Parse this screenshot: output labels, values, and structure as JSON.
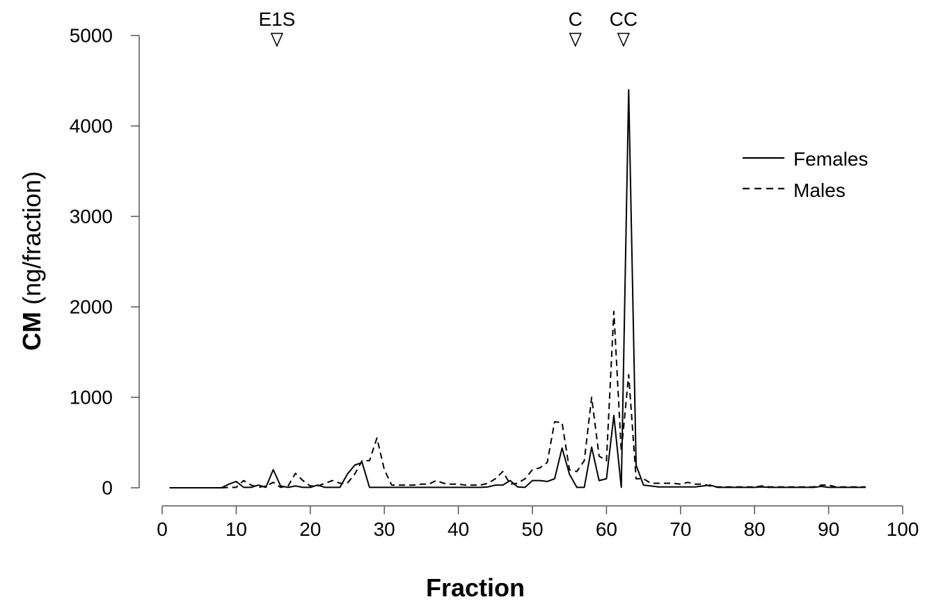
{
  "chart_data": {
    "type": "line",
    "title": "",
    "xlabel": "Fraction",
    "ylabel_bold": "CM",
    "ylabel_rest": " (ng/fraction)",
    "xlim": [
      0,
      100
    ],
    "ylim": [
      0,
      5000
    ],
    "x_ticks": [
      0,
      10,
      20,
      30,
      40,
      50,
      60,
      70,
      80,
      90,
      100
    ],
    "y_ticks": [
      0,
      1000,
      2000,
      3000,
      4000,
      5000
    ],
    "grid": false,
    "legend_position": "top-right",
    "colors": {
      "line": "#000000",
      "background": "#ffffff"
    },
    "markers": [
      {
        "label": "E1S",
        "x": 15.5
      },
      {
        "label": "C",
        "x": 55.8
      },
      {
        "label": "CC",
        "x": 62.3
      }
    ],
    "series": [
      {
        "name": "Females",
        "style": "solid",
        "x": [
          1,
          2,
          3,
          4,
          5,
          6,
          7,
          8,
          9,
          10,
          11,
          12,
          13,
          14,
          15,
          16,
          17,
          18,
          19,
          20,
          21,
          22,
          23,
          24,
          25,
          26,
          27,
          28,
          29,
          30,
          31,
          32,
          33,
          34,
          35,
          36,
          37,
          38,
          39,
          40,
          41,
          42,
          43,
          44,
          45,
          46,
          47,
          48,
          49,
          50,
          51,
          52,
          53,
          54,
          55,
          56,
          57,
          58,
          59,
          60,
          61,
          62,
          63,
          64,
          65,
          66,
          67,
          68,
          69,
          70,
          71,
          72,
          73,
          74,
          75,
          76,
          77,
          78,
          79,
          80,
          81,
          82,
          83,
          84,
          85,
          86,
          87,
          88,
          89,
          90,
          91,
          92,
          93,
          94,
          95
        ],
        "y": [
          0,
          0,
          0,
          0,
          0,
          0,
          0,
          0,
          40,
          70,
          5,
          5,
          30,
          5,
          200,
          20,
          5,
          20,
          5,
          5,
          30,
          5,
          5,
          5,
          150,
          250,
          280,
          5,
          5,
          5,
          5,
          5,
          5,
          5,
          5,
          5,
          5,
          5,
          5,
          5,
          5,
          5,
          5,
          10,
          30,
          30,
          80,
          10,
          5,
          80,
          80,
          70,
          100,
          440,
          150,
          5,
          5,
          450,
          80,
          100,
          800,
          5,
          4400,
          250,
          30,
          20,
          10,
          10,
          10,
          10,
          10,
          10,
          20,
          30,
          5,
          5,
          5,
          5,
          5,
          5,
          10,
          5,
          5,
          5,
          5,
          5,
          5,
          5,
          15,
          5,
          5,
          5,
          5,
          5,
          5
        ]
      },
      {
        "name": "Males",
        "style": "dashed",
        "x": [
          1,
          2,
          3,
          4,
          5,
          6,
          7,
          8,
          9,
          10,
          11,
          12,
          13,
          14,
          15,
          16,
          17,
          18,
          19,
          20,
          21,
          22,
          23,
          24,
          25,
          26,
          27,
          28,
          29,
          30,
          31,
          32,
          33,
          34,
          35,
          36,
          37,
          38,
          39,
          40,
          41,
          42,
          43,
          44,
          45,
          46,
          47,
          48,
          49,
          50,
          51,
          52,
          53,
          54,
          55,
          56,
          57,
          58,
          59,
          60,
          61,
          62,
          63,
          64,
          65,
          66,
          67,
          68,
          69,
          70,
          71,
          72,
          73,
          74,
          75,
          76,
          77,
          78,
          79,
          80,
          81,
          82,
          83,
          84,
          85,
          86,
          87,
          88,
          89,
          90,
          91,
          92,
          93,
          94,
          95
        ],
        "y": [
          0,
          0,
          0,
          0,
          0,
          0,
          0,
          0,
          5,
          5,
          80,
          30,
          5,
          20,
          60,
          5,
          20,
          160,
          80,
          20,
          20,
          50,
          80,
          50,
          50,
          150,
          300,
          300,
          550,
          200,
          30,
          30,
          30,
          30,
          40,
          40,
          80,
          50,
          40,
          40,
          30,
          30,
          30,
          50,
          100,
          180,
          40,
          50,
          100,
          200,
          220,
          280,
          730,
          720,
          200,
          180,
          300,
          1000,
          350,
          300,
          1950,
          400,
          1250,
          100,
          100,
          50,
          50,
          50,
          50,
          40,
          60,
          40,
          40,
          20,
          10,
          10,
          10,
          10,
          10,
          10,
          20,
          10,
          10,
          10,
          10,
          10,
          10,
          10,
          30,
          30,
          10,
          10,
          10,
          10,
          10
        ]
      }
    ]
  }
}
